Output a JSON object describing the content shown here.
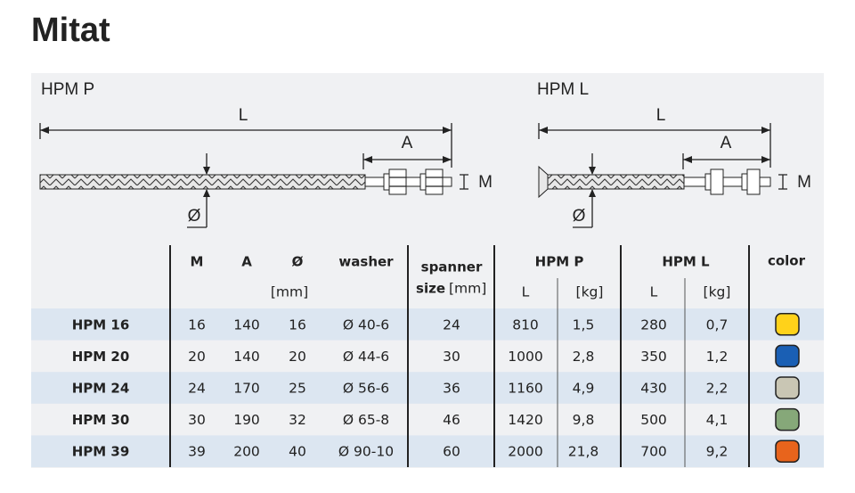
{
  "title": "Mitat",
  "diagrams": [
    {
      "name": "HPM P",
      "length": "L",
      "anchor": "A",
      "thread": "M",
      "diameter": "Ø"
    },
    {
      "name": "HPM L",
      "length": "L",
      "anchor": "A",
      "thread": "M",
      "diameter": "Ø"
    }
  ],
  "table": {
    "header": {
      "m": "M",
      "a": "A",
      "diameter": "Ø",
      "washer": "washer",
      "unit": "[mm]",
      "spanner": "spanner",
      "size": "size",
      "spanner_unit": "[mm]",
      "hpm_p": "HPM P",
      "hpm_p_length": "L",
      "hpm_p_weight": "[kg]",
      "hpm_l": "HPM L",
      "hpm_l_length": "L",
      "hpm_l_weight": "[kg]",
      "color": "color"
    },
    "rows": [
      [
        "HPM 16",
        "16",
        "140",
        "16",
        "Ø 40-6",
        "24",
        "810",
        "1,5",
        "280",
        "0,7"
      ],
      [
        "HPM 20",
        "20",
        "140",
        "20",
        "Ø 44-6",
        "30",
        "1000",
        "2,8",
        "350",
        "1,2"
      ],
      [
        "HPM 24",
        "24",
        "170",
        "25",
        "Ø 56-6",
        "36",
        "1160",
        "4,9",
        "430",
        "2,2"
      ],
      [
        "HPM 30",
        "30",
        "190",
        "32",
        "Ø 65-8",
        "46",
        "1420",
        "9,8",
        "500",
        "4,1"
      ],
      [
        "HPM 39",
        "39",
        "200",
        "40",
        "Ø 90-10",
        "60",
        "2000",
        "21,8",
        "700",
        "9,2"
      ]
    ],
    "colors": [
      "#ffd21a",
      "#1a5fb4",
      "#c9c6b4",
      "#86a879",
      "#e8641c"
    ]
  }
}
